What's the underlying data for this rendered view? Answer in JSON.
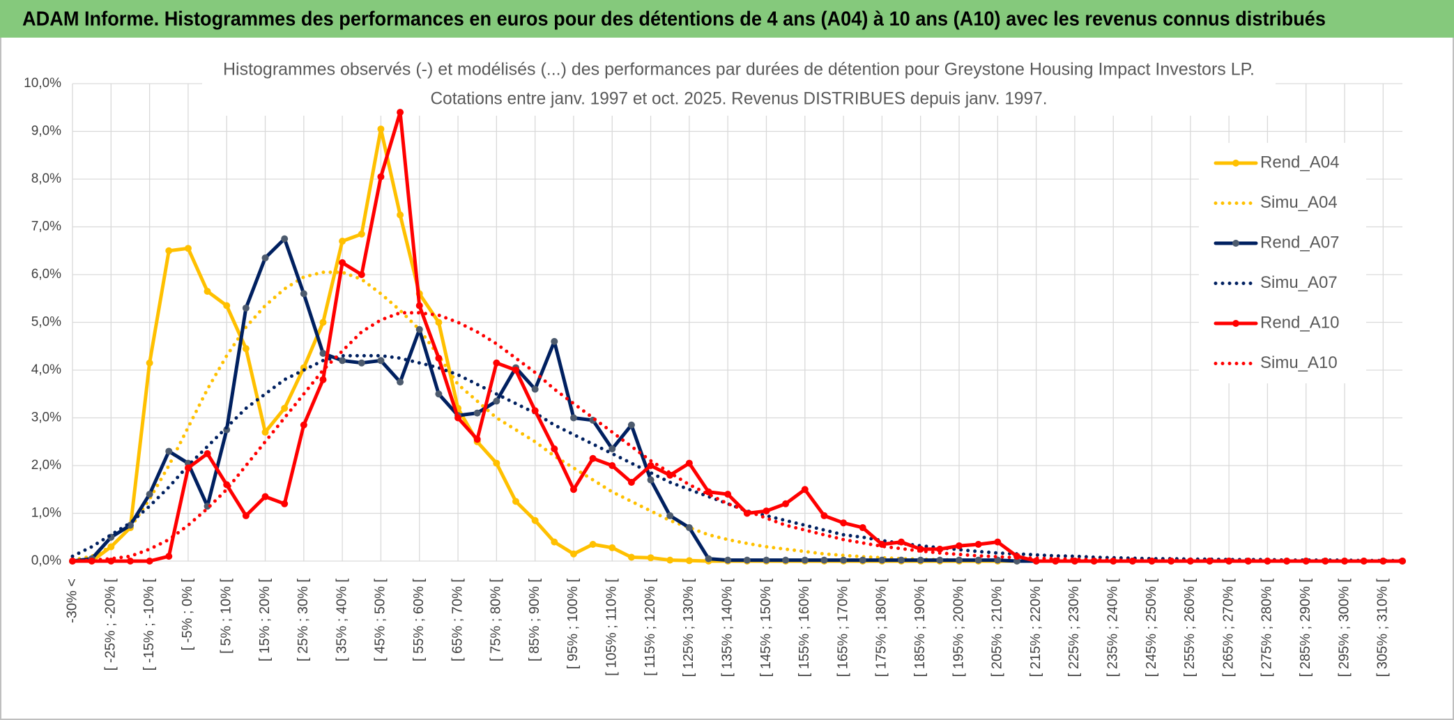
{
  "chart_data": {
    "type": "line",
    "header": "ADAM Informe. Histogrammes des performances en euros pour des détentions de 4 ans (A04) à 10 ans (A10) avec les revenus connus distribués",
    "title": [
      "Histogrammes observés (-) et modélisés (...) des performances par durées de détention pour Greystone Housing Impact Investors LP.",
      "Cotations entre janv. 1997 et oct. 2025. Revenus DISTRIBUES depuis janv. 1997."
    ],
    "categories": [
      "-30% <",
      null,
      "[ -25% ; -20% [",
      null,
      "[ -15% ; -10% [",
      null,
      "[ -5% ; 0% [",
      null,
      "[ 5% ; 10% [",
      null,
      "[ 15% ; 20% [",
      null,
      "[ 25% ; 30% [",
      null,
      "[ 35% ; 40% [",
      null,
      "[ 45% ; 50% [",
      null,
      "[ 55% ; 60% [",
      null,
      "[ 65% ; 70% [",
      null,
      "[ 75% ; 80% [",
      null,
      "[ 85% ; 90% [",
      null,
      "[ 95% ; 100% [",
      null,
      "[ 105% ; 110% [",
      null,
      "[ 115% ; 120% [",
      null,
      "[ 125% ; 130% [",
      null,
      "[ 135% ; 140% [",
      null,
      "[ 145% ; 150% [",
      null,
      "[ 155% ; 160% [",
      null,
      "[ 165% ; 170% [",
      null,
      "[ 175% ; 180% [",
      null,
      "[ 185% ; 190% [",
      null,
      "[ 195% ; 200% [",
      null,
      "[ 205% ; 210% [",
      null,
      "[ 215% ; 220% [",
      null,
      "[ 225% ; 230% [",
      null,
      "[ 235% ; 240% [",
      null,
      "[ 245% ; 250% [",
      null,
      "[ 255% ; 260% [",
      null,
      "[ 265% ; 270% [",
      null,
      "[ 275% ; 280% [",
      null,
      "[ 285% ; 290% [",
      null,
      "[ 295% ; 300% [",
      null,
      "[ 305% ; 310% [",
      null
    ],
    "ylim": [
      0,
      10
    ],
    "yticks": [
      {
        "value": 0,
        "label": "0,0%"
      },
      {
        "value": 1,
        "label": "1,0%"
      },
      {
        "value": 2,
        "label": "2,0%"
      },
      {
        "value": 3,
        "label": "3,0%"
      },
      {
        "value": 4,
        "label": "4,0%"
      },
      {
        "value": 5,
        "label": "5,0%"
      },
      {
        "value": 6,
        "label": "6,0%"
      },
      {
        "value": 7,
        "label": "7,0%"
      },
      {
        "value": 8,
        "label": "8,0%"
      },
      {
        "value": 9,
        "label": "9,0%"
      },
      {
        "value": 10,
        "label": "10,0%"
      }
    ],
    "grid": true,
    "legend": "right",
    "series": [
      {
        "name": "Rend_A04",
        "color": "#ffc000",
        "style": "solid",
        "markers": true,
        "marker_color": "#ffc000",
        "values": [
          0,
          0,
          0.3,
          0.7,
          4.15,
          6.5,
          6.55,
          5.65,
          5.35,
          4.45,
          2.7,
          3.2,
          4.05,
          5.0,
          6.7,
          6.85,
          9.05,
          7.25,
          5.6,
          5.0,
          3.2,
          2.5,
          2.05,
          1.25,
          0.85,
          0.4,
          0.15,
          0.35,
          0.28,
          0.08,
          0.07,
          0.02,
          0.01,
          0,
          0,
          0,
          0,
          0,
          0,
          0,
          0,
          0,
          0,
          0,
          0,
          0,
          0,
          0,
          0,
          0,
          0,
          0,
          0,
          0,
          0,
          0,
          0,
          0,
          0,
          0,
          0,
          0,
          0,
          0,
          0,
          0,
          0,
          0,
          0,
          0
        ]
      },
      {
        "name": "Simu_A04",
        "color": "#ffc000",
        "style": "dotted",
        "markers": false,
        "values": [
          0.02,
          0.1,
          0.3,
          0.7,
          1.3,
          2.0,
          2.8,
          3.6,
          4.3,
          4.9,
          5.35,
          5.7,
          5.95,
          6.05,
          6.05,
          5.9,
          5.6,
          5.25,
          4.85,
          4.3,
          3.7,
          3.35,
          3.0,
          2.75,
          2.5,
          2.2,
          1.95,
          1.7,
          1.45,
          1.25,
          1.05,
          0.85,
          0.7,
          0.55,
          0.45,
          0.37,
          0.3,
          0.25,
          0.2,
          0.15,
          0.12,
          0.09,
          0.07,
          0.05,
          0.04,
          0.03,
          0.02,
          0.01,
          0,
          0,
          0,
          0,
          0,
          0,
          0,
          0,
          0,
          0,
          0,
          0,
          0,
          0,
          0,
          0,
          0,
          0,
          0,
          0,
          0,
          0
        ]
      },
      {
        "name": "Rend_A07",
        "color": "#002060",
        "style": "solid",
        "markers": true,
        "marker_color": "#4d5b6e",
        "values": [
          0,
          0.05,
          0.5,
          0.75,
          1.4,
          2.3,
          2.05,
          1.15,
          2.75,
          5.3,
          6.35,
          6.75,
          5.6,
          4.35,
          4.2,
          4.15,
          4.2,
          3.75,
          4.85,
          3.5,
          3.05,
          3.1,
          3.35,
          4.05,
          3.6,
          4.6,
          3.0,
          2.95,
          2.35,
          2.85,
          1.7,
          0.95,
          0.7,
          0.05,
          0.02,
          0.02,
          0.02,
          0.02,
          0.02,
          0.02,
          0.02,
          0.02,
          0.02,
          0.02,
          0.02,
          0.02,
          0.02,
          0.02,
          0.02,
          0,
          0,
          0,
          0,
          0,
          0,
          0,
          0,
          0,
          0,
          0,
          0,
          0,
          0,
          0,
          0,
          0,
          0,
          0,
          0,
          0
        ]
      },
      {
        "name": "Simu_A07",
        "color": "#002060",
        "style": "dotted",
        "markers": false,
        "values": [
          0.1,
          0.3,
          0.55,
          0.8,
          1.15,
          1.55,
          2.0,
          2.4,
          2.8,
          3.2,
          3.5,
          3.8,
          4.0,
          4.2,
          4.3,
          4.3,
          4.3,
          4.25,
          4.15,
          4.05,
          3.9,
          3.7,
          3.5,
          3.3,
          3.1,
          2.85,
          2.65,
          2.45,
          2.25,
          2.05,
          1.85,
          1.65,
          1.5,
          1.35,
          1.2,
          1.05,
          0.95,
          0.85,
          0.75,
          0.65,
          0.55,
          0.5,
          0.43,
          0.37,
          0.32,
          0.28,
          0.24,
          0.2,
          0.17,
          0.15,
          0.13,
          0.11,
          0.1,
          0.08,
          0.07,
          0.06,
          0.05,
          0.05,
          0.04,
          0.04,
          0.03,
          0.03,
          0.03,
          0.02,
          0.02,
          0.02,
          0.02,
          0.01,
          0.01,
          0.01
        ]
      },
      {
        "name": "Rend_A10",
        "color": "#ff0000",
        "style": "solid",
        "markers": true,
        "marker_color": "#ff0000",
        "values": [
          0,
          0,
          0,
          0,
          0,
          0.1,
          1.95,
          2.25,
          1.6,
          0.95,
          1.35,
          1.2,
          2.85,
          3.8,
          6.25,
          6.0,
          8.05,
          9.4,
          5.35,
          4.25,
          3.0,
          2.55,
          4.15,
          4.0,
          3.15,
          2.35,
          1.5,
          2.15,
          2.0,
          1.65,
          2.0,
          1.8,
          2.05,
          1.45,
          1.4,
          1.0,
          1.05,
          1.2,
          1.5,
          0.95,
          0.8,
          0.7,
          0.35,
          0.4,
          0.25,
          0.25,
          0.32,
          0.35,
          0.4,
          0.1,
          0,
          0,
          0,
          0,
          0,
          0,
          0,
          0,
          0,
          0,
          0,
          0,
          0,
          0,
          0,
          0,
          0,
          0,
          0,
          0
        ]
      },
      {
        "name": "Simu_A10",
        "color": "#ff0000",
        "style": "dotted",
        "markers": false,
        "values": [
          0,
          0.02,
          0.05,
          0.1,
          0.25,
          0.45,
          0.75,
          1.1,
          1.5,
          2.0,
          2.5,
          3.0,
          3.5,
          4.0,
          4.4,
          4.8,
          5.05,
          5.2,
          5.2,
          5.15,
          5.0,
          4.8,
          4.55,
          4.25,
          3.95,
          3.6,
          3.3,
          3.0,
          2.7,
          2.4,
          2.1,
          1.85,
          1.6,
          1.4,
          1.2,
          1.05,
          0.9,
          0.75,
          0.65,
          0.55,
          0.45,
          0.38,
          0.31,
          0.26,
          0.21,
          0.17,
          0.14,
          0.11,
          0.09,
          0.07,
          0.06,
          0.05,
          0.04,
          0.03,
          0.02,
          0.02,
          0.01,
          0.01,
          0.01,
          0.01,
          0.01,
          0.01,
          0.01,
          0.01,
          0,
          0,
          0,
          0,
          0,
          0
        ]
      }
    ]
  }
}
